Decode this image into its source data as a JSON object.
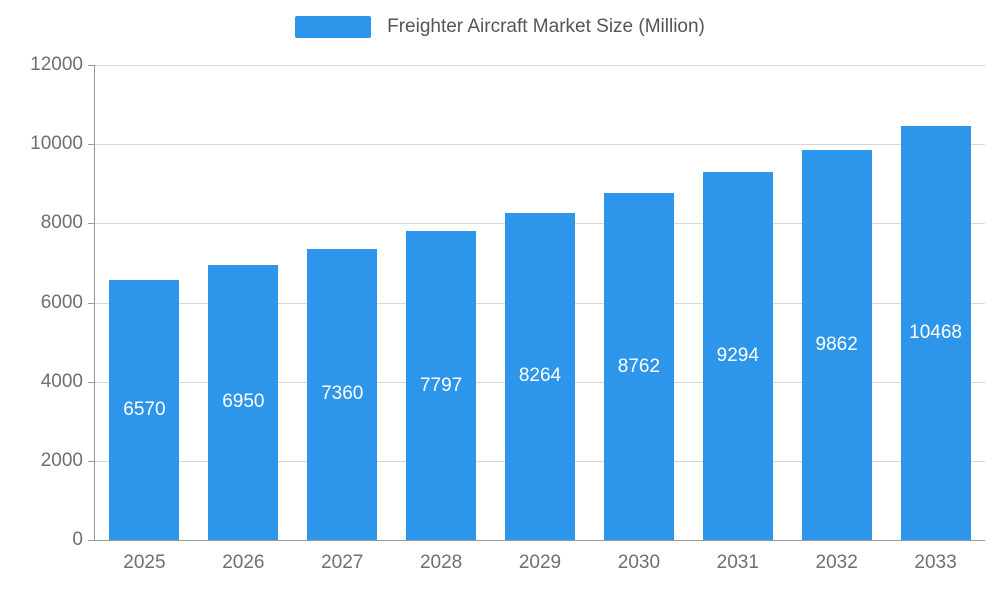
{
  "chart_data": {
    "type": "bar",
    "title": "Freighter Aircraft Market Size (Million)",
    "categories": [
      "2025",
      "2026",
      "2027",
      "2028",
      "2029",
      "2030",
      "2031",
      "2032",
      "2033"
    ],
    "values": [
      6570,
      6950,
      7360,
      7797,
      8264,
      8762,
      9294,
      9862,
      10468
    ],
    "xlabel": "",
    "ylabel": "",
    "ylim": [
      0,
      12000
    ],
    "yticks": [
      0,
      2000,
      4000,
      6000,
      8000,
      10000,
      12000
    ],
    "grid": true,
    "legend_position": "top",
    "bar_color": "#2d96ea",
    "bar_label_color": "#ffffff",
    "axis_text_color": "#6f6f6f",
    "grid_color": "#d6d6d6",
    "axis_line_color": "#999999"
  },
  "legend": {
    "label": "Freighter Aircraft Market Size (Million)"
  }
}
